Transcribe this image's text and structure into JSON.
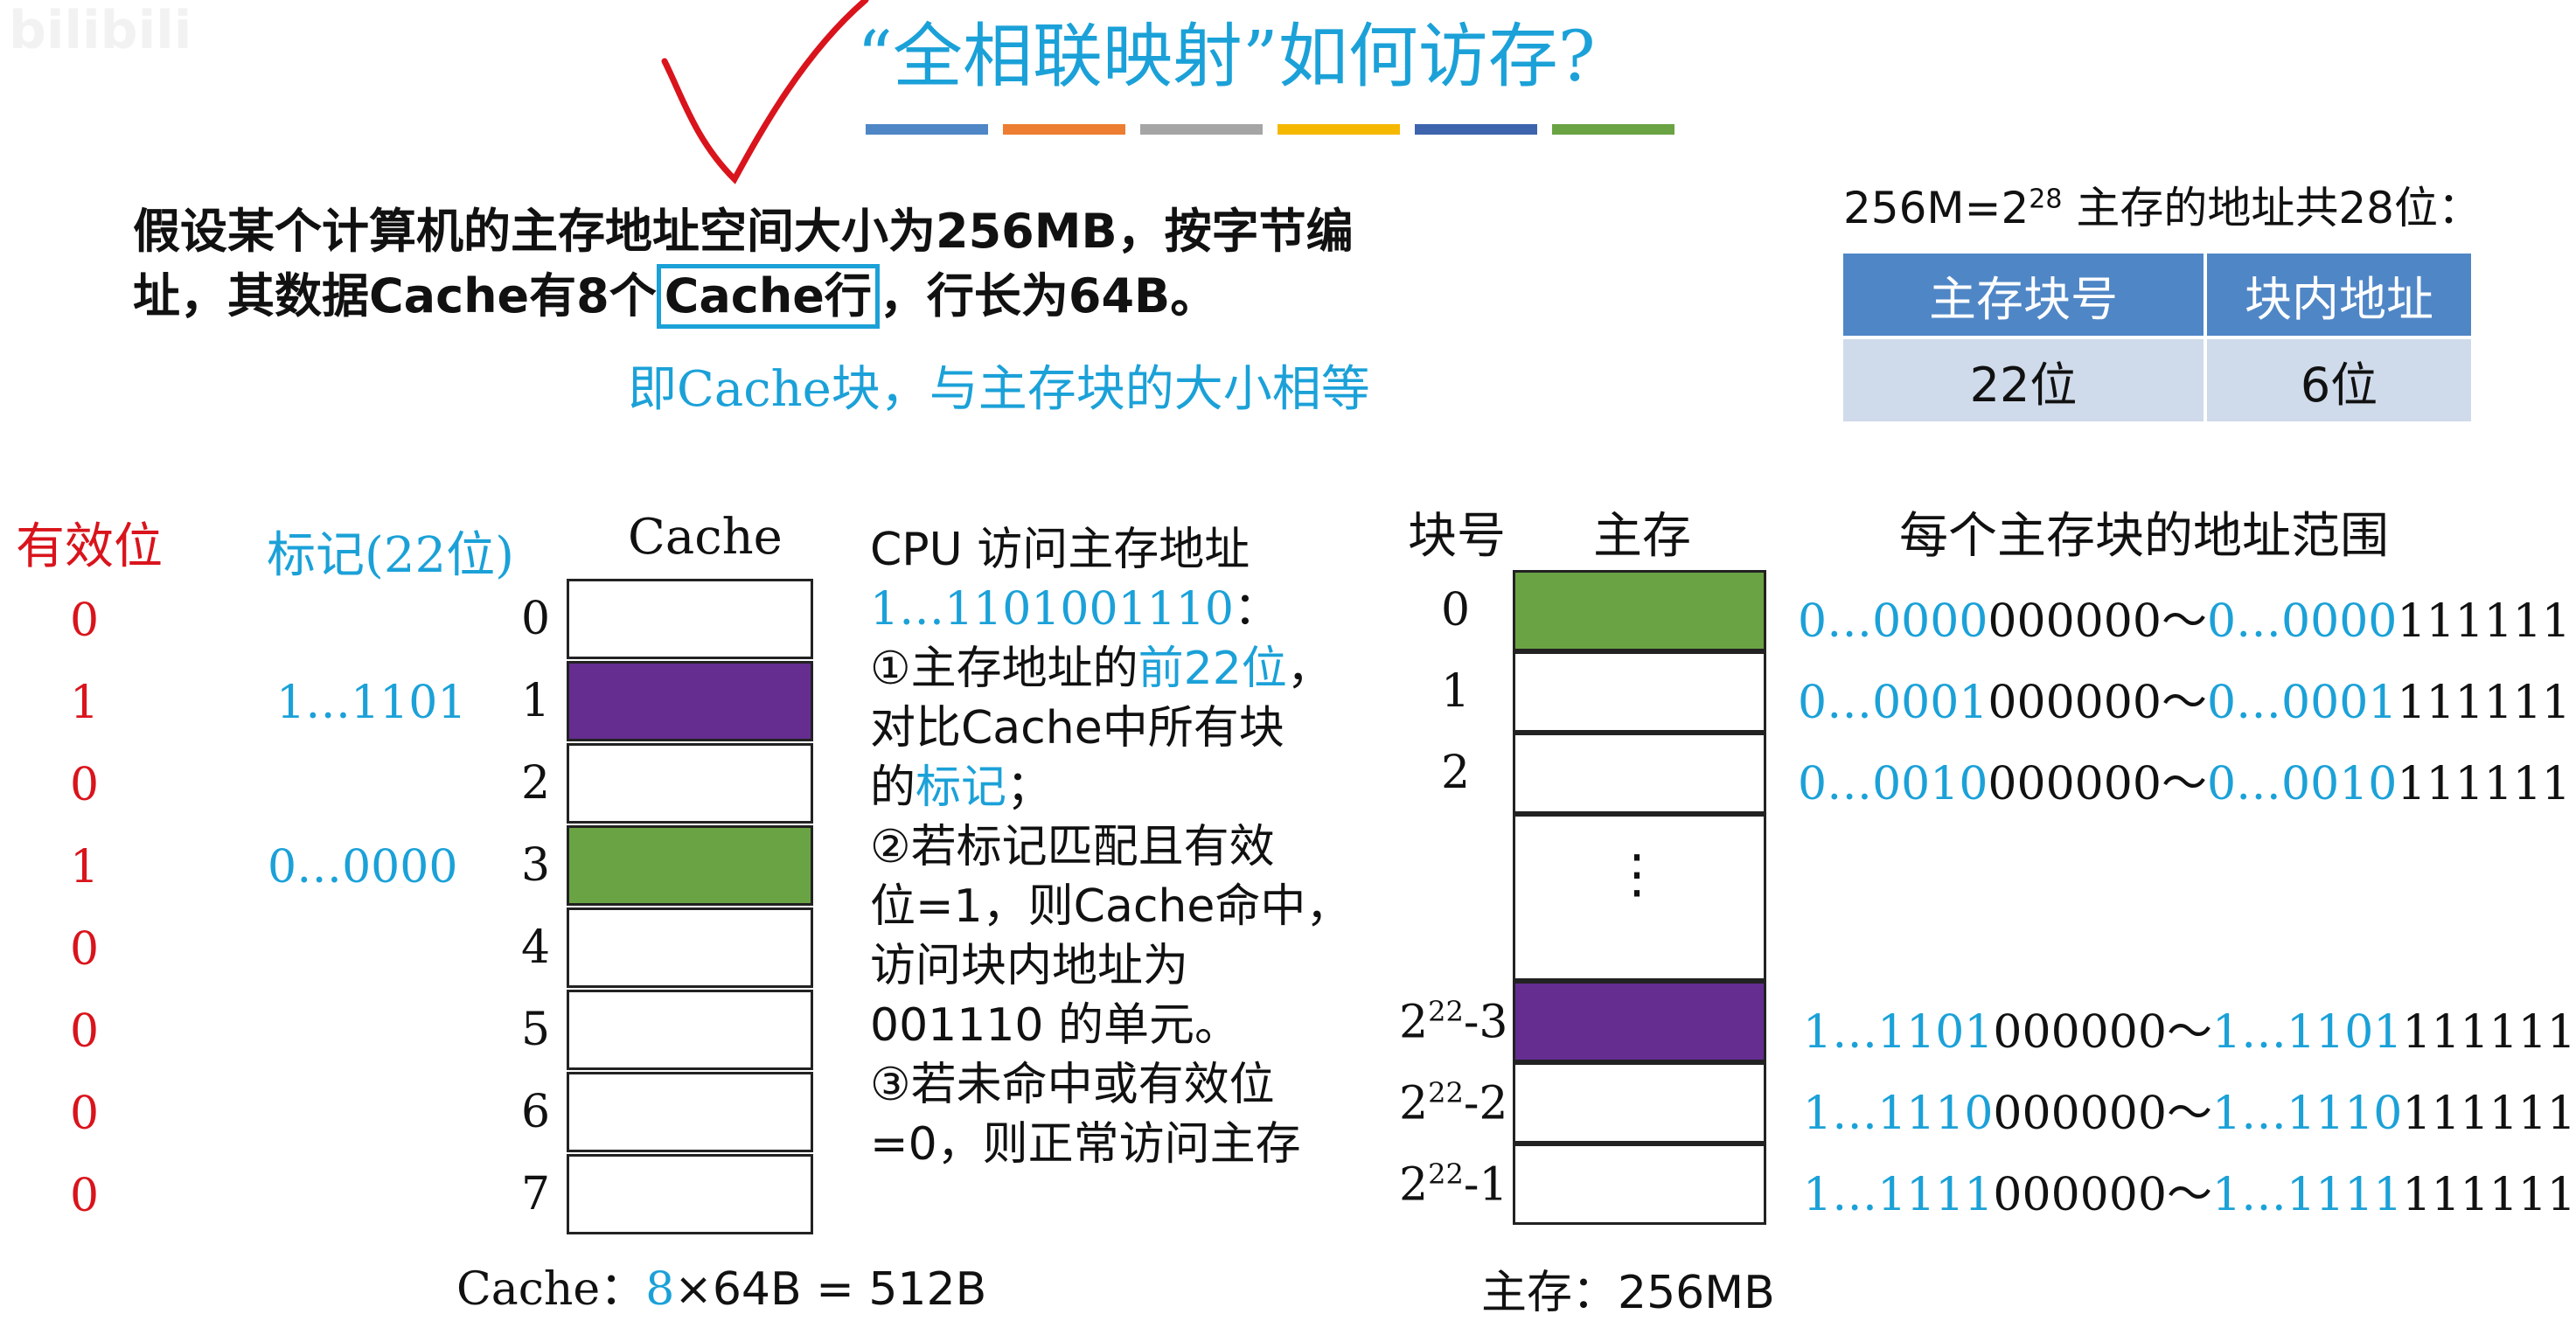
{
  "watermark": "bilibili",
  "title": "“全相联映射”如何访存?",
  "colors": {
    "accent": "#1ba1d8",
    "valid": "#d9141c",
    "purple": "#662d91",
    "green": "#6aa343",
    "table_head": "#4f86c6",
    "table_body": "#cfdaea"
  },
  "stripes": [
    "#4f86c6",
    "#ed7d31",
    "#a5a5a5",
    "#f5b800",
    "#3e64ad",
    "#6aa343"
  ],
  "problem": {
    "line1": "假设某个计算机的主存地址空间大小为256MB，按字节编",
    "line2_pre": "址，其数据Cache有8个",
    "line2_box": "Cache行",
    "line2_post": "，行长为64B。",
    "note": "即Cache块，与主存块的大小相等"
  },
  "address": {
    "heading_pre": "256M=2",
    "heading_sup": "28",
    "heading_post": " 主存的地址共28位：",
    "col1": "主存块号",
    "col2": "块内地址",
    "val1": "22位",
    "val2": "6位"
  },
  "cache": {
    "valid_header": "有效位",
    "tag_header": "标记(22位)",
    "cache_header": "Cache",
    "valid_bits": [
      "0",
      "1",
      "0",
      "1",
      "0",
      "0",
      "0",
      "0"
    ],
    "tags": [
      "",
      "1…1101",
      "",
      "0…0000",
      "",
      "",
      "",
      ""
    ],
    "indices": [
      "0",
      "1",
      "2",
      "3",
      "4",
      "5",
      "6",
      "7"
    ],
    "fills": [
      "white",
      "purple",
      "white",
      "green",
      "white",
      "white",
      "white",
      "white"
    ],
    "size_label": "Cache：",
    "size_blue": "8",
    "size_rest": "×64B = 512B"
  },
  "explain": {
    "l1": "CPU 访问主存地址",
    "l2_blue": "1…1101001110",
    "l2_tail": "：",
    "l3_pre": "①主存地址的",
    "l3_blue": "前22位",
    "l3_post": "，",
    "l4": "对比Cache中所有块",
    "l5_pre": "的",
    "l5_blue": "标记",
    "l5_post": "；",
    "l6": "②若标记匹配且有效",
    "l7": "位=1，则Cache命中，",
    "l8": "访问块内地址为",
    "l9": "001110 的单元。",
    "l10": "③若未命中或有效位",
    "l11": "=0，则正常访问主存"
  },
  "memory": {
    "block_header": "块号",
    "mem_header": "主存",
    "range_header": "每个主存块的地址范围",
    "ellipsis": "⋮",
    "blocks": [
      {
        "label": "0",
        "sup": "",
        "suffix": "",
        "fill": "green",
        "r1b": "0…0000",
        "r1r": "000000",
        "r2b": "0…0000",
        "r2r": "111111"
      },
      {
        "label": "1",
        "sup": "",
        "suffix": "",
        "fill": "white",
        "r1b": "0…0001",
        "r1r": "000000",
        "r2b": "0…0001",
        "r2r": "111111"
      },
      {
        "label": "2",
        "sup": "",
        "suffix": "",
        "fill": "white",
        "r1b": "0…0010",
        "r1r": "000000",
        "r2b": "0…0010",
        "r2r": "111111"
      },
      {
        "label": "2",
        "sup": "22",
        "suffix": "-3",
        "fill": "purple",
        "r1b": "1…1101",
        "r1r": "000000",
        "r2b": "1…1101",
        "r2r": "111111"
      },
      {
        "label": "2",
        "sup": "22",
        "suffix": "-2",
        "fill": "white",
        "r1b": "1…1110",
        "r1r": "000000",
        "r2b": "1…1110",
        "r2r": "111111"
      },
      {
        "label": "2",
        "sup": "22",
        "suffix": "-1",
        "fill": "white",
        "r1b": "1…1111",
        "r1r": "000000",
        "r2b": "1…1111",
        "r2r": "111111"
      }
    ],
    "tilde": "～",
    "size_label": "主存：256MB"
  }
}
